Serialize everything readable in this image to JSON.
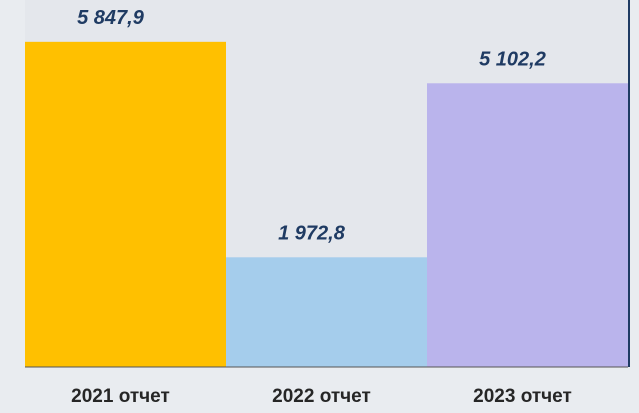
{
  "chart_data": {
    "type": "bar",
    "categories": [
      "2021 отчет",
      "2022 отчет",
      "2023 отчет"
    ],
    "values": [
      5847.9,
      1972.8,
      5102.2
    ],
    "value_labels": [
      "5 847,9",
      "1 972,8",
      "5 102,2"
    ],
    "colors": [
      "#ffc000",
      "#a5cdec",
      "#bab4ec"
    ],
    "ylim": [
      0,
      6600
    ]
  }
}
